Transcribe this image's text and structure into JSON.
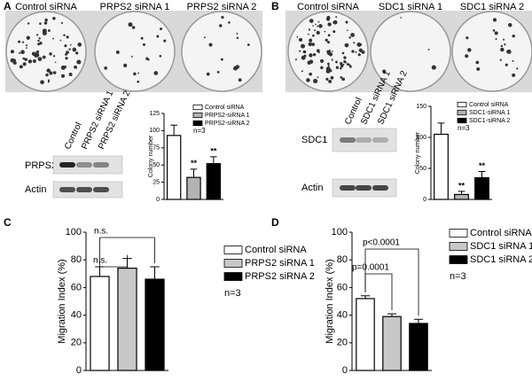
{
  "panels": [
    {
      "label": "A",
      "plates": [
        "Control siRNA",
        "PRPS2 siRNA 1",
        "PRPS2 siRNA 2"
      ],
      "blot_lanes": [
        "Control",
        "PRPS2 siRNA 1",
        "PRPS2 siRNA 2"
      ],
      "blot_rows": [
        "PRPS2",
        "Actin"
      ]
    },
    {
      "label": "B",
      "plates": [
        "Control siRNA",
        "SDC1 siRNA 1",
        "SDC1 siRNA 2"
      ],
      "blot_lanes": [
        "Control",
        "SDC1 siRNA 1",
        "SDC1 siRNA 2"
      ],
      "blot_rows": [
        "SDC1",
        "Actin"
      ]
    },
    {
      "label": "C"
    },
    {
      "label": "D"
    }
  ],
  "chart_data": [
    {
      "type": "bar",
      "ylabel": "Colony number",
      "ylim": [
        0,
        125
      ],
      "yticks": [
        0,
        25,
        50,
        75,
        100,
        125
      ],
      "series": [
        {
          "name": "Control siRNA",
          "color": "#ffffff",
          "values": [
            93
          ],
          "errors": [
            15
          ]
        },
        {
          "name": "PRPS2-siRNA 1",
          "color": "#b3b3b3",
          "values": [
            32
          ],
          "errors": [
            12
          ]
        },
        {
          "name": "PRPS2-siRNA 2",
          "color": "#000000",
          "values": [
            52
          ],
          "errors": [
            10
          ]
        }
      ],
      "annotations": [
        "**",
        "**",
        "n=3"
      ]
    },
    {
      "type": "bar",
      "ylabel": "Colony number",
      "ylim": [
        0,
        150
      ],
      "yticks": [
        0,
        50,
        100,
        150
      ],
      "series": [
        {
          "name": "Control siRNA",
          "color": "#ffffff",
          "values": [
            105
          ],
          "errors": [
            18
          ]
        },
        {
          "name": "SDC1-siRNA 1",
          "color": "#b3b3b3",
          "values": [
            8
          ],
          "errors": [
            5
          ]
        },
        {
          "name": "SDC1-siRNA 2",
          "color": "#000000",
          "values": [
            35
          ],
          "errors": [
            10
          ]
        }
      ],
      "annotations": [
        "**",
        "**",
        "n=3"
      ]
    },
    {
      "type": "bar",
      "ylabel": "Migration Index (%)",
      "ylim": [
        0,
        100
      ],
      "yticks": [
        0,
        20,
        40,
        60,
        80,
        100
      ],
      "series": [
        {
          "name": "Control siRNA",
          "color": "#ffffff",
          "values": [
            68
          ],
          "errors": [
            7
          ]
        },
        {
          "name": "PRPS2 siRNA 1",
          "color": "#c8c8c8",
          "values": [
            74
          ],
          "errors": [
            7
          ]
        },
        {
          "name": "PRPS2 siRNA 2",
          "color": "#000000",
          "values": [
            66
          ],
          "errors": [
            9
          ]
        }
      ],
      "annotations": [
        "n.s.",
        "n.s.",
        "n=3"
      ]
    },
    {
      "type": "bar",
      "ylabel": "Migration Index (%)",
      "ylim": [
        0,
        100
      ],
      "yticks": [
        0,
        20,
        40,
        60,
        80,
        100
      ],
      "series": [
        {
          "name": "Control siRNA",
          "color": "#ffffff",
          "values": [
            52
          ],
          "errors": [
            2
          ]
        },
        {
          "name": "SDC1 siRNA 1",
          "color": "#c8c8c8",
          "values": [
            39
          ],
          "errors": [
            2
          ]
        },
        {
          "name": "SDC1 siRNA 2",
          "color": "#000000",
          "values": [
            34
          ],
          "errors": [
            3
          ]
        }
      ],
      "annotations": [
        "p<0.0001",
        "p=0.0001",
        "n=3"
      ]
    }
  ]
}
